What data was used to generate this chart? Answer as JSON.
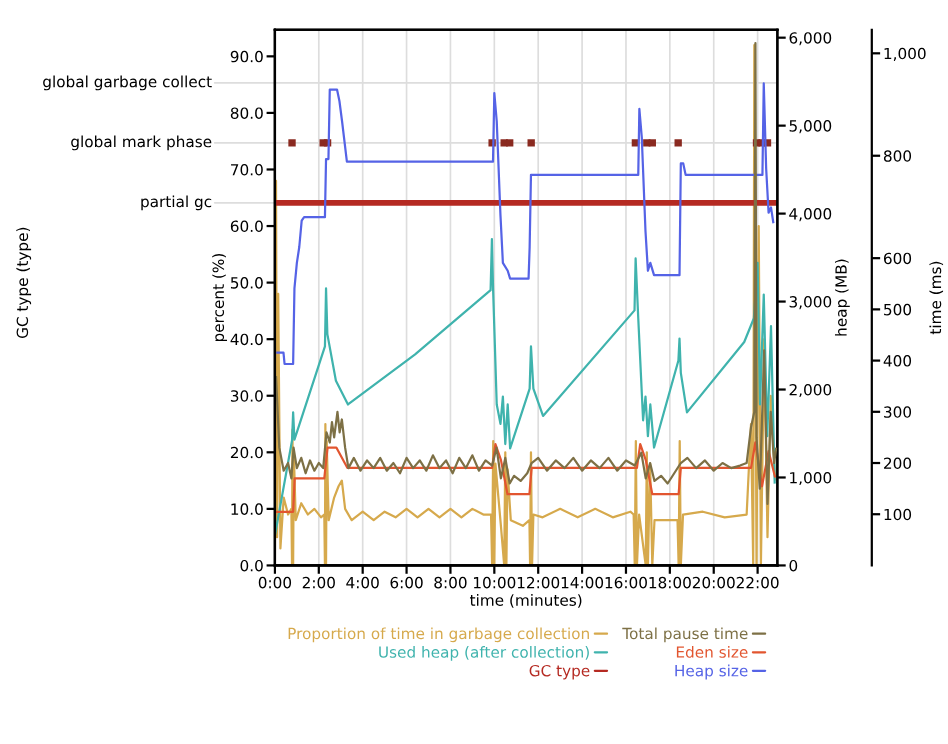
{
  "chart_data": {
    "type": "line",
    "xlabel": "time (minutes)",
    "ylabel": "percent (%)",
    "y2label": "heap (MB)",
    "y3label": "time (ms)",
    "xlim": [
      0,
      22.9
    ],
    "xticks": [
      {
        "value": 0,
        "label": "0:00"
      },
      {
        "value": 2,
        "label": "2:00"
      },
      {
        "value": 4,
        "label": "4:00"
      },
      {
        "value": 6,
        "label": "6:00"
      },
      {
        "value": 8,
        "label": "8:00"
      },
      {
        "value": 10,
        "label": "10:00"
      },
      {
        "value": 12,
        "label": "12:00"
      },
      {
        "value": 14,
        "label": "14:00"
      },
      {
        "value": 16,
        "label": "16:00"
      },
      {
        "value": 18,
        "label": "18:00"
      },
      {
        "value": 20,
        "label": "20:00"
      },
      {
        "value": 22,
        "label": "22:00"
      }
    ],
    "ylim": [
      0,
      94.7
    ],
    "yticks": [
      {
        "value": 0,
        "label": "0.0"
      },
      {
        "value": 10,
        "label": "10.0"
      },
      {
        "value": 20,
        "label": "20.0"
      },
      {
        "value": 30,
        "label": "30.0"
      },
      {
        "value": 40,
        "label": "40.0"
      },
      {
        "value": 50,
        "label": "50.0"
      },
      {
        "value": 60,
        "label": "60.0"
      },
      {
        "value": 70,
        "label": "70.0"
      },
      {
        "value": 80,
        "label": "80.0"
      },
      {
        "value": 90,
        "label": "90.0"
      }
    ],
    "y2lim": [
      0,
      6090
    ],
    "y2ticks": [
      0,
      {
        "value": 1000,
        "label": "1,000"
      },
      {
        "value": 2000,
        "label": "2,000"
      },
      {
        "value": 3000,
        "label": "3,000"
      },
      {
        "value": 4000,
        "label": "4,000"
      },
      {
        "value": 5000,
        "label": "5,000"
      },
      {
        "value": 6000,
        "label": "6,000"
      }
    ],
    "annotations": [
      "GC type (type)"
    ],
    "ref_lines": [
      {
        "axis": "y",
        "value": 64.1,
        "label": "partial gc",
        "color": "#dddddd"
      },
      {
        "axis": "y",
        "value": 74.7,
        "label": "global mark phase",
        "color": "#dddddd"
      },
      {
        "axis": "y",
        "value": 85.3,
        "label": "global garbage collect",
        "color": "#dddddd"
      }
    ],
    "y3lim": [
      0,
      1046
    ],
    "y3ticks": [
      100,
      200,
      300,
      400,
      500,
      600,
      800,
      {
        "value": 1000,
        "label": "1,000"
      }
    ],
    "grid": "x",
    "legend": "bottom",
    "series": [
      {
        "name": "Proportion of time in garbage collection",
        "color": "#d6a94c",
        "axis": "y",
        "x": [
          0.0,
          0.05,
          0.1,
          0.15,
          0.25,
          0.4,
          0.6,
          0.75,
          0.78,
          0.8,
          0.83,
          0.86,
          0.95,
          1.2,
          1.5,
          1.8,
          2.1,
          2.25,
          2.28,
          2.3,
          2.33,
          2.36,
          2.45,
          2.7,
          2.9,
          3.05,
          3.2,
          3.5,
          4.0,
          4.5,
          5.0,
          5.5,
          6.0,
          6.5,
          7.0,
          7.5,
          8.0,
          8.5,
          9.0,
          9.5,
          9.85,
          9.9,
          9.95,
          10.0,
          10.05,
          10.3,
          10.45,
          10.5,
          10.55,
          10.6,
          10.75,
          11.3,
          11.6,
          11.63,
          11.67,
          11.72,
          11.78,
          12.2,
          13.0,
          13.8,
          14.6,
          15.4,
          16.2,
          16.35,
          16.4,
          16.45,
          16.5,
          16.6,
          16.9,
          16.95,
          17.0,
          17.1,
          17.2,
          17.3,
          18.35,
          18.4,
          18.45,
          18.5,
          18.6,
          19.5,
          20.5,
          21.5,
          21.7,
          21.8,
          21.85,
          21.95,
          22.05,
          22.15,
          22.3,
          22.45,
          22.6,
          22.8
        ],
        "values": [
          0,
          68,
          5,
          48,
          3,
          12,
          9,
          10,
          0,
          24,
          0,
          20,
          8,
          11,
          9,
          10,
          8.5,
          9,
          0,
          25,
          0,
          22,
          8,
          12,
          14,
          15,
          10,
          8,
          9.5,
          8,
          9.5,
          8.5,
          10,
          8.5,
          10,
          8.5,
          10,
          8.5,
          10,
          9,
          9,
          0,
          22,
          0,
          18,
          7,
          0,
          20,
          0,
          17,
          8,
          7,
          8,
          0,
          20,
          0,
          9,
          8.5,
          10,
          8.5,
          10,
          8.5,
          9.5,
          9,
          0,
          22,
          0,
          9,
          0,
          20,
          0,
          18,
          0,
          8,
          8,
          0,
          22,
          0,
          9,
          9.5,
          8.5,
          9,
          25,
          0,
          92,
          0,
          60,
          0,
          40,
          5,
          30,
          15
        ]
      },
      {
        "name": "Used heap (after collection)",
        "color": "#3fb3ad",
        "axis": "y2",
        "x": [
          0,
          0.78,
          0.83,
          0.89,
          2.28,
          2.33,
          2.39,
          2.78,
          3.33,
          6.39,
          9.83,
          9.89,
          9.94,
          10.11,
          10.28,
          10.39,
          10.5,
          10.61,
          10.72,
          11.61,
          11.67,
          11.78,
          12.22,
          16.39,
          16.44,
          16.56,
          16.78,
          16.89,
          17.0,
          17.11,
          17.28,
          18.39,
          18.44,
          18.5,
          18.78,
          21.39,
          21.83,
          22.0,
          22.11,
          22.28,
          22.44,
          22.61,
          22.78
        ],
        "values": [
          340,
          1420,
          1740,
          1430,
          2490,
          3150,
          2630,
          2100,
          1830,
          2400,
          3130,
          3710,
          3170,
          1830,
          1610,
          1920,
          1380,
          1830,
          1330,
          2010,
          2490,
          2010,
          1700,
          2900,
          3490,
          2810,
          1650,
          1920,
          1470,
          1830,
          1340,
          2330,
          2580,
          2190,
          1740,
          2540,
          2810,
          3440,
          1830,
          3080,
          1470,
          2720,
          930
        ]
      },
      {
        "name": "GC type",
        "color": "#b52a22",
        "axis": "y",
        "x": [
          0,
          22.9
        ],
        "values": [
          64.1,
          64.1
        ]
      },
      {
        "type": "scatter",
        "marker": "square",
        "color": "#8a2a20",
        "axis": "y",
        "x": [
          0.78,
          2.2,
          2.4,
          9.9,
          10.45,
          10.7,
          11.68,
          16.43,
          16.95,
          17.2,
          18.38,
          21.95,
          22.2,
          22.45
        ],
        "values": [
          74.7,
          74.7,
          74.7,
          74.7,
          74.7,
          74.7,
          74.7,
          74.7,
          74.7,
          74.7,
          74.7,
          74.7,
          74.7,
          74.7
        ]
      },
      {
        "name": "Total pause time",
        "color": "#7d7045",
        "axis": "y3",
        "x": [
          0.05,
          0.2,
          0.4,
          0.6,
          0.75,
          0.85,
          1.0,
          1.2,
          1.4,
          1.6,
          1.8,
          2.0,
          2.2,
          2.35,
          2.5,
          2.6,
          2.7,
          2.85,
          2.95,
          3.05,
          3.2,
          3.35,
          3.6,
          3.9,
          4.2,
          4.5,
          4.8,
          5.1,
          5.4,
          5.7,
          6.0,
          6.3,
          6.6,
          6.9,
          7.2,
          7.5,
          7.8,
          8.1,
          8.4,
          8.7,
          9.0,
          9.3,
          9.6,
          9.9,
          10.1,
          10.3,
          10.5,
          10.7,
          10.9,
          11.2,
          11.5,
          11.7,
          12.0,
          12.4,
          12.8,
          13.2,
          13.6,
          14.0,
          14.4,
          14.8,
          15.2,
          15.6,
          16.0,
          16.4,
          16.7,
          16.9,
          17.1,
          17.3,
          17.6,
          17.9,
          18.2,
          18.5,
          18.8,
          19.2,
          19.6,
          20.0,
          20.4,
          20.8,
          21.2,
          21.5,
          21.7,
          21.85,
          21.9,
          21.95,
          22.1,
          22.3,
          22.45,
          22.6,
          22.75,
          22.85
        ],
        "values": [
          370,
          230,
          185,
          200,
          170,
          230,
          190,
          210,
          180,
          205,
          185,
          200,
          190,
          260,
          240,
          280,
          250,
          300,
          260,
          285,
          230,
          190,
          210,
          185,
          205,
          190,
          210,
          185,
          200,
          180,
          210,
          190,
          205,
          185,
          215,
          190,
          205,
          180,
          210,
          190,
          215,
          185,
          205,
          195,
          230,
          170,
          210,
          160,
          175,
          165,
          180,
          200,
          210,
          185,
          205,
          190,
          210,
          185,
          205,
          190,
          210,
          185,
          205,
          195,
          220,
          170,
          200,
          165,
          175,
          160,
          180,
          200,
          210,
          190,
          205,
          185,
          200,
          190,
          195,
          200,
          270,
          300,
          1020,
          250,
          150,
          420,
          120,
          300,
          200,
          230
        ]
      },
      {
        "name": "Eden size",
        "color": "#e2552f",
        "axis": "y2",
        "x": [
          0,
          0.83,
          0.9,
          2.25,
          2.4,
          2.8,
          3.3,
          9.9,
          10.05,
          10.3,
          10.6,
          11.6,
          11.7,
          16.5,
          16.65,
          16.9,
          17.2,
          18.4,
          18.5,
          21.7,
          21.9,
          22.2,
          22.5,
          22.8
        ],
        "values": [
          610,
          610,
          990,
          990,
          1340,
          1340,
          1110,
          1110,
          1380,
          1200,
          810,
          810,
          1110,
          1110,
          1380,
          1200,
          810,
          810,
          1110,
          1110,
          1400,
          900,
          1300,
          1000
        ]
      },
      {
        "name": "Heap size",
        "color": "#5563e6",
        "axis": "y2",
        "x": [
          0.06,
          0.39,
          0.44,
          0.83,
          0.89,
          1.0,
          1.11,
          1.22,
          1.33,
          2.28,
          2.33,
          2.44,
          2.5,
          2.83,
          2.94,
          3.06,
          3.28,
          9.94,
          10.0,
          10.11,
          10.28,
          10.39,
          10.61,
          10.72,
          11.56,
          11.61,
          11.67,
          16.56,
          16.61,
          16.72,
          16.89,
          17.0,
          17.11,
          17.28,
          18.44,
          18.5,
          18.61,
          18.72,
          22.22,
          22.28,
          22.39,
          22.5,
          22.61,
          22.72
        ],
        "values": [
          2420,
          2420,
          2290,
          2290,
          3150,
          3440,
          3620,
          3920,
          3960,
          3960,
          4620,
          4620,
          5410,
          5410,
          5280,
          5050,
          4590,
          4590,
          5370,
          5050,
          3980,
          3440,
          3350,
          3260,
          3260,
          3620,
          4440,
          4440,
          5190,
          4870,
          3800,
          3350,
          3440,
          3300,
          3300,
          4570,
          4570,
          4440,
          4440,
          5480,
          4510,
          4010,
          4070,
          3890
        ]
      }
    ]
  }
}
